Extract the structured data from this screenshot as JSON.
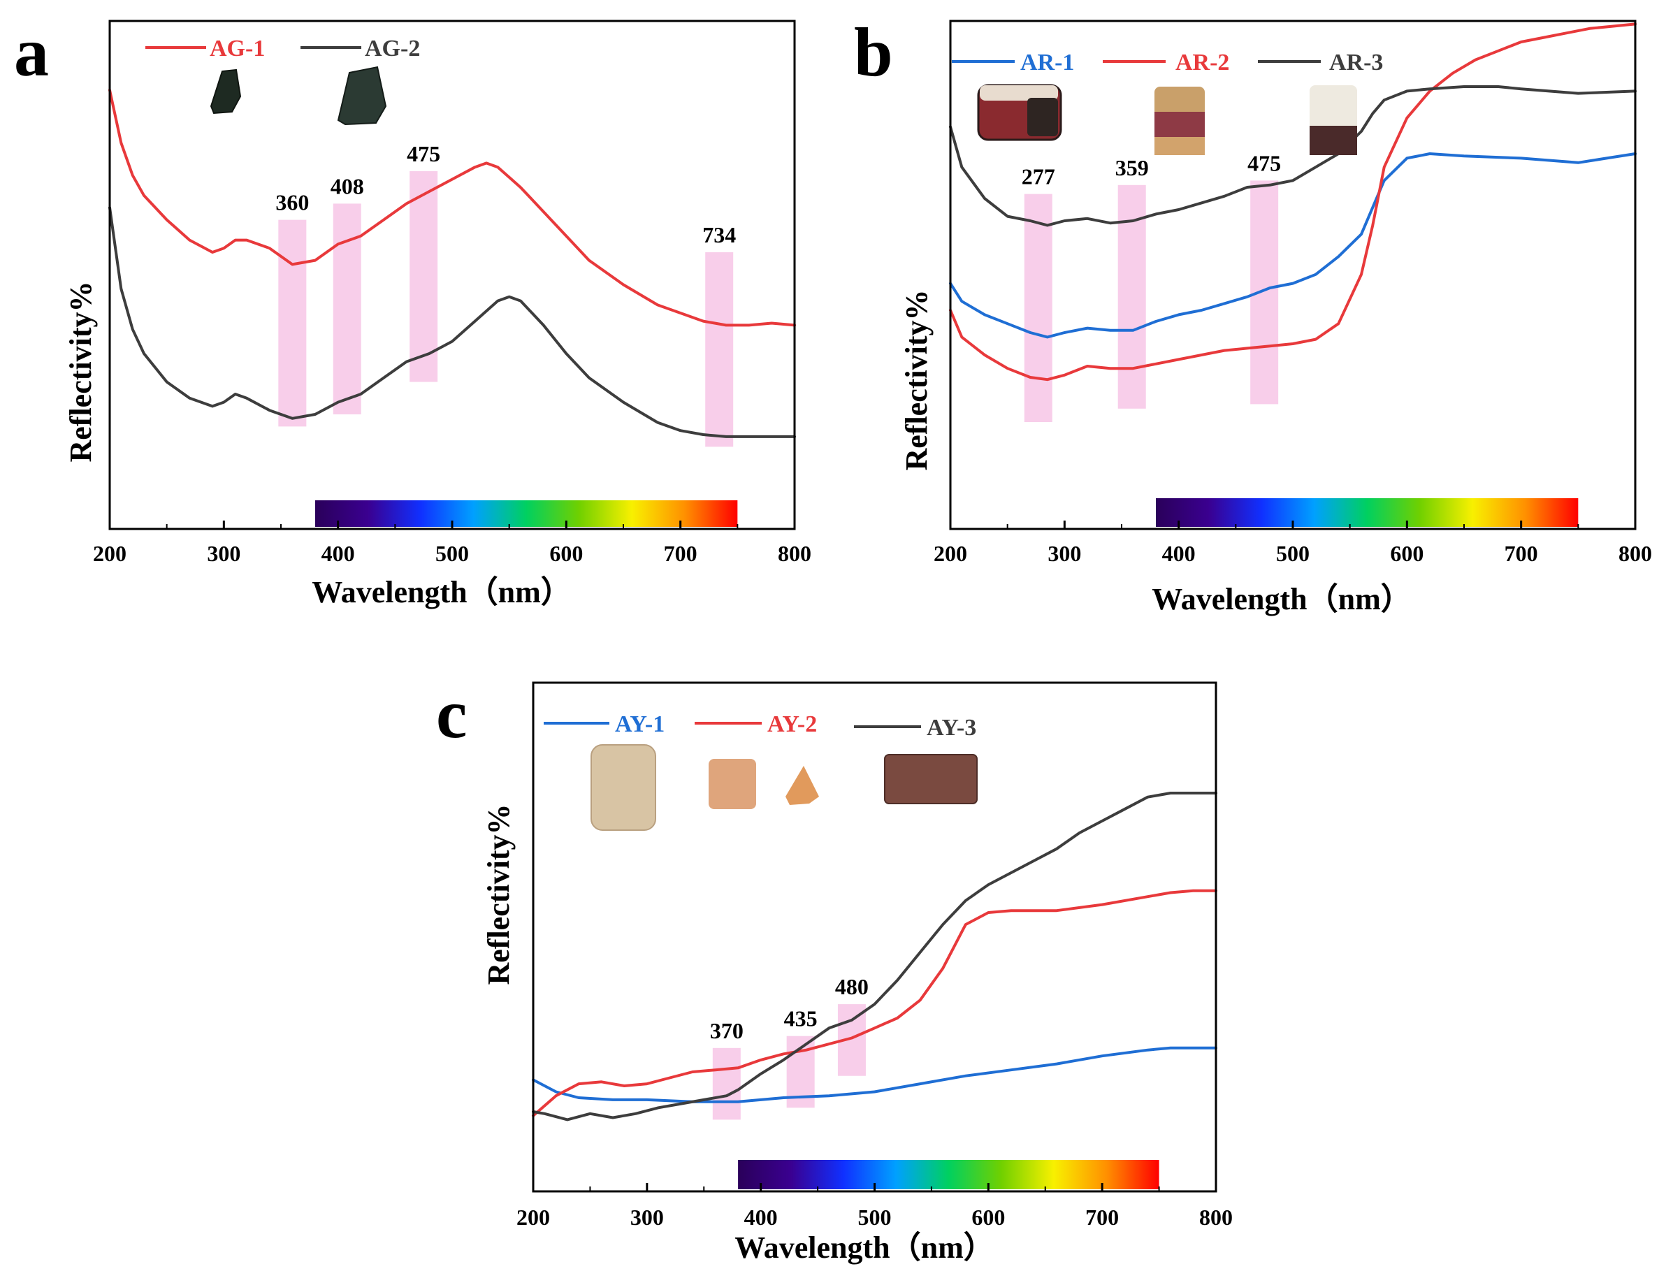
{
  "figure": {
    "colors": {
      "red": "#e8393b",
      "gray": "#3d3d3d",
      "blue": "#1f6ed4",
      "band": "#f7c6e6",
      "axis": "#000000"
    },
    "spectrum_stops": [
      "#2a005a",
      "#3a0090",
      "#1030ff",
      "#00a0ff",
      "#00d060",
      "#70d000",
      "#f8f000",
      "#ff9000",
      "#ff0000"
    ]
  },
  "chart_data": [
    {
      "panel": "a",
      "type": "line",
      "xlabel": "Wavelength（nm）",
      "ylabel": "Reflectivity%",
      "xlim": [
        200,
        800
      ],
      "ylim": [
        0,
        100
      ],
      "xticks": [
        "200",
        "300",
        "400",
        "500",
        "600",
        "700",
        "800"
      ],
      "spectrum_range": [
        380,
        750
      ],
      "bands": [
        {
          "label": "360",
          "x": 360,
          "y_low": 12,
          "y_high": 63
        },
        {
          "label": "408",
          "x": 408,
          "y_low": 15,
          "y_high": 67
        },
        {
          "label": "475",
          "x": 475,
          "y_low": 23,
          "y_high": 75
        },
        {
          "label": "734",
          "x": 734,
          "y_low": 7,
          "y_high": 55
        }
      ],
      "series": [
        {
          "name": "AG-1",
          "color": "red",
          "x": [
            200,
            210,
            220,
            230,
            250,
            270,
            290,
            300,
            310,
            320,
            340,
            360,
            380,
            400,
            420,
            440,
            460,
            480,
            500,
            520,
            530,
            540,
            560,
            580,
            600,
            620,
            650,
            680,
            700,
            720,
            740,
            760,
            780,
            800
          ],
          "y": [
            95,
            82,
            74,
            69,
            63,
            58,
            55,
            56,
            58,
            58,
            56,
            52,
            53,
            57,
            59,
            63,
            67,
            70,
            73,
            76,
            77,
            76,
            71,
            65,
            59,
            53,
            47,
            42,
            40,
            38,
            37,
            37,
            37.5,
            37
          ]
        },
        {
          "name": "AG-2",
          "color": "gray",
          "x": [
            200,
            210,
            220,
            230,
            250,
            270,
            290,
            300,
            310,
            320,
            340,
            360,
            380,
            400,
            420,
            440,
            460,
            480,
            500,
            520,
            540,
            550,
            560,
            580,
            600,
            620,
            650,
            680,
            700,
            720,
            740,
            760,
            780,
            800
          ],
          "y": [
            66,
            46,
            36,
            30,
            23,
            19,
            17,
            18,
            20,
            19,
            16,
            14,
            15,
            18,
            20,
            24,
            28,
            30,
            33,
            38,
            43,
            44,
            43,
            37,
            30,
            24,
            18,
            13,
            11,
            10,
            9.5,
            9.5,
            9.5,
            9.5
          ]
        }
      ],
      "legend": [
        "AG-1",
        "AG-2"
      ]
    },
    {
      "panel": "b",
      "type": "line",
      "xlabel": "Wavelength（nm）",
      "ylabel": "Reflectivity%",
      "xlim": [
        200,
        800
      ],
      "ylim": [
        0,
        100
      ],
      "xticks": [
        "200",
        "300",
        "400",
        "500",
        "600",
        "700",
        "800"
      ],
      "spectrum_range": [
        380,
        750
      ],
      "bands": [
        {
          "label": "277",
          "x": 277,
          "y_low": 15,
          "y_high": 66
        },
        {
          "label": "359",
          "x": 359,
          "y_low": 18,
          "y_high": 68
        },
        {
          "label": "475",
          "x": 475,
          "y_low": 19,
          "y_high": 69
        }
      ],
      "series": [
        {
          "name": "AR-1",
          "color": "blue",
          "x": [
            200,
            210,
            230,
            250,
            270,
            285,
            300,
            320,
            340,
            360,
            380,
            400,
            420,
            440,
            460,
            480,
            500,
            520,
            540,
            560,
            570,
            580,
            600,
            620,
            650,
            700,
            750,
            800
          ],
          "y": [
            46,
            42,
            39,
            37,
            35,
            34,
            35,
            36,
            35.5,
            35.5,
            37.5,
            39,
            40,
            41.5,
            43,
            45,
            46,
            48,
            52,
            57,
            63,
            69,
            74,
            75,
            74.5,
            74,
            73,
            75
          ]
        },
        {
          "name": "AR-2",
          "color": "red",
          "x": [
            200,
            210,
            230,
            250,
            270,
            285,
            300,
            320,
            340,
            360,
            380,
            400,
            420,
            440,
            460,
            480,
            500,
            520,
            540,
            560,
            570,
            580,
            600,
            620,
            640,
            660,
            680,
            700,
            720,
            740,
            760,
            780,
            800
          ],
          "y": [
            40,
            34,
            30,
            27,
            25,
            24.5,
            25.5,
            27.5,
            27,
            27,
            28,
            29,
            30,
            31,
            31.5,
            32,
            32.5,
            33.5,
            37,
            48,
            59,
            72,
            83,
            89,
            93,
            96,
            98,
            100,
            101,
            102,
            103,
            103.5,
            104
          ]
        },
        {
          "name": "AR-3",
          "color": "gray",
          "x": [
            200,
            210,
            230,
            250,
            270,
            285,
            300,
            320,
            340,
            360,
            380,
            400,
            420,
            440,
            460,
            480,
            500,
            520,
            540,
            560,
            570,
            580,
            600,
            620,
            650,
            680,
            700,
            750,
            800
          ],
          "y": [
            81,
            72,
            65,
            61,
            60,
            59,
            60,
            60.5,
            59.5,
            60,
            61.5,
            62.5,
            64,
            65.5,
            67.5,
            68,
            69,
            72,
            75,
            80,
            84,
            87,
            89,
            89.5,
            90,
            90,
            89.5,
            88.5,
            89
          ]
        }
      ],
      "legend": [
        "AR-1",
        "AR-2",
        "AR-3"
      ]
    },
    {
      "panel": "c",
      "type": "line",
      "xlabel": "Wavelength（nm）",
      "ylabel": "Reflectivity%",
      "xlim": [
        200,
        800
      ],
      "ylim": [
        0,
        100
      ],
      "xticks": [
        "200",
        "300",
        "400",
        "500",
        "600",
        "700",
        "800"
      ],
      "spectrum_range": [
        380,
        750
      ],
      "bands": [
        {
          "label": "370",
          "x": 370,
          "y_low": 8,
          "y_high": 26
        },
        {
          "label": "435",
          "x": 435,
          "y_low": 11,
          "y_high": 29
        },
        {
          "label": "480",
          "x": 480,
          "y_low": 19,
          "y_high": 37
        }
      ],
      "series": [
        {
          "name": "AY-1",
          "color": "blue",
          "x": [
            200,
            220,
            240,
            270,
            300,
            340,
            380,
            420,
            460,
            500,
            540,
            580,
            620,
            660,
            700,
            740,
            760,
            800
          ],
          "y": [
            18,
            15,
            13.5,
            13,
            13,
            12.5,
            12.5,
            13.5,
            14,
            15,
            17,
            19,
            20.5,
            22,
            24,
            25.5,
            26,
            26
          ]
        },
        {
          "name": "AY-2",
          "color": "red",
          "x": [
            200,
            220,
            240,
            260,
            280,
            300,
            320,
            340,
            360,
            380,
            400,
            420,
            440,
            460,
            480,
            500,
            520,
            540,
            560,
            580,
            600,
            620,
            660,
            700,
            740,
            760,
            780,
            800
          ],
          "y": [
            9,
            14,
            17,
            17.5,
            16.5,
            17,
            18.5,
            20,
            20.5,
            21,
            23,
            24.5,
            25.5,
            27,
            28.5,
            31,
            33.5,
            38,
            46,
            57,
            60,
            60.5,
            60.5,
            62,
            64,
            65,
            65.5,
            65.5
          ]
        },
        {
          "name": "AY-3",
          "color": "gray",
          "x": [
            200,
            210,
            230,
            250,
            270,
            290,
            310,
            330,
            350,
            370,
            380,
            400,
            420,
            440,
            460,
            480,
            500,
            520,
            540,
            560,
            580,
            600,
            620,
            640,
            660,
            680,
            700,
            720,
            740,
            760,
            780,
            800
          ],
          "y": [
            10,
            9.5,
            8,
            9.5,
            8.5,
            9.5,
            11,
            12,
            13,
            14,
            15.5,
            19.5,
            23,
            27,
            31,
            33,
            37,
            43,
            50,
            57,
            63,
            67,
            70,
            73,
            76,
            80,
            83,
            86,
            89,
            90,
            90,
            90
          ]
        }
      ],
      "legend": [
        "AY-1",
        "AY-2",
        "AY-3"
      ]
    }
  ]
}
